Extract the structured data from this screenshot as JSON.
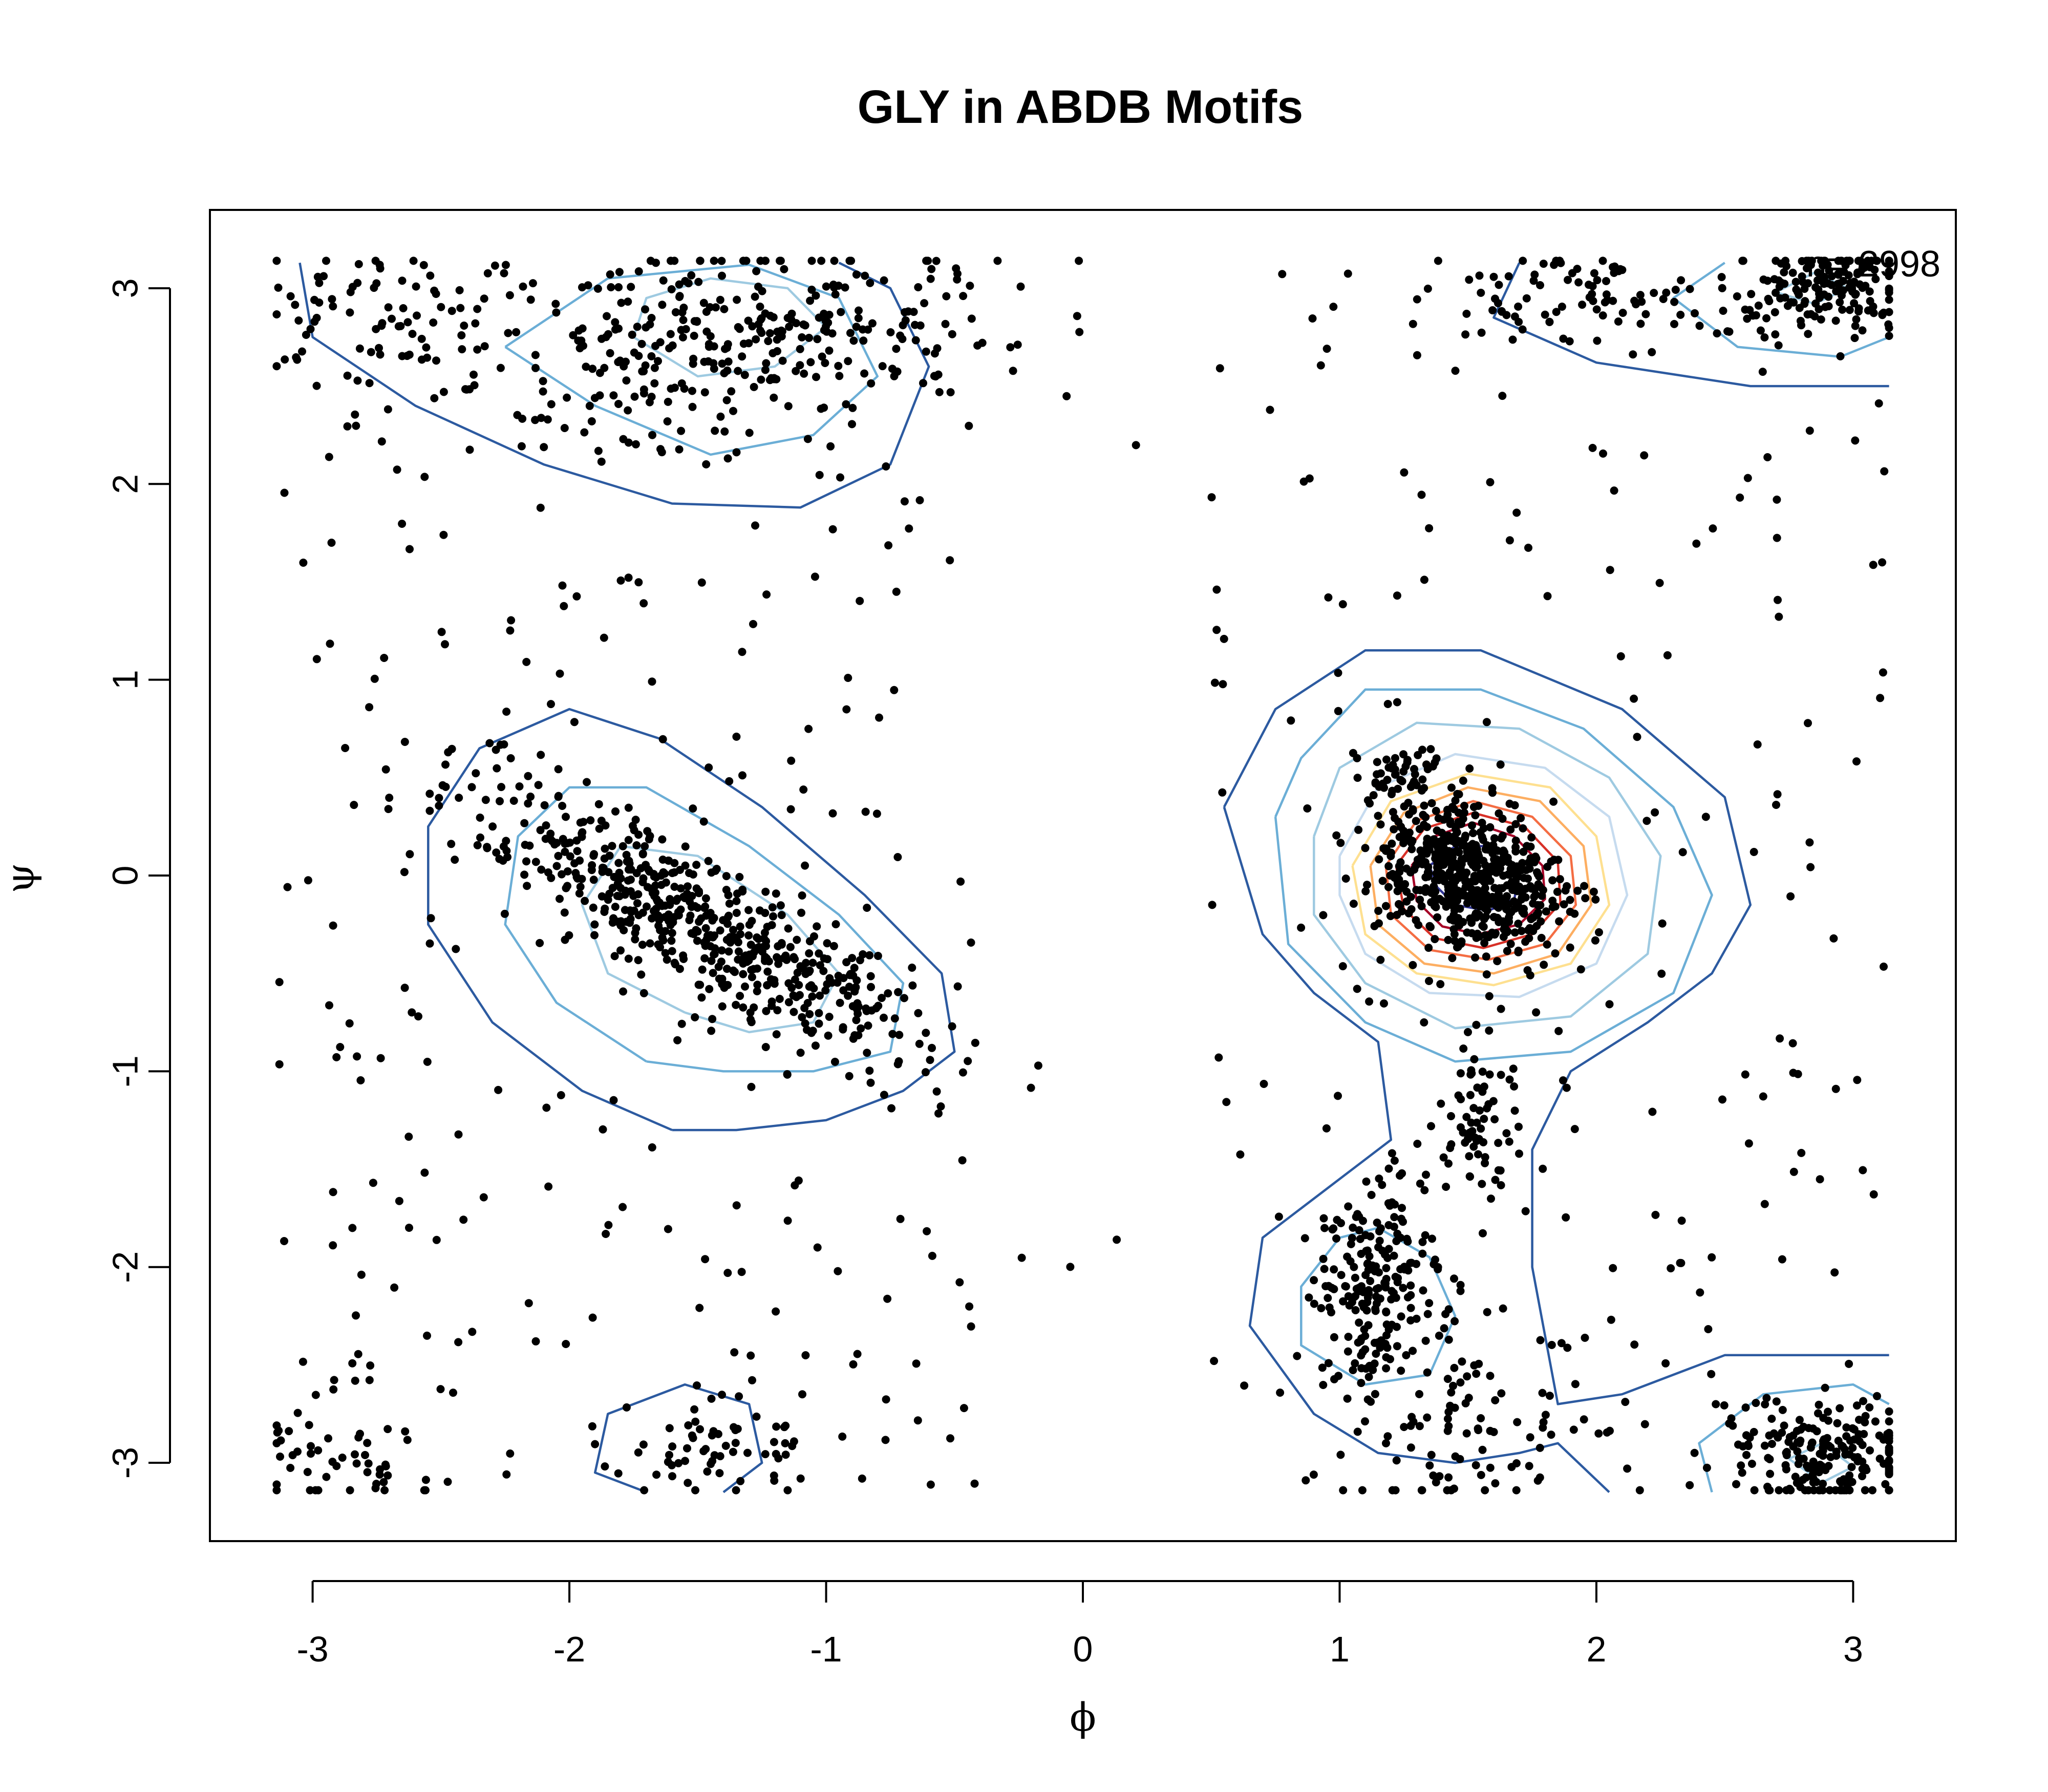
{
  "chart_data": {
    "type": "scatter",
    "title": "GLY  in ABDB Motifs",
    "xlabel": "ϕ",
    "ylabel": "ψ",
    "xlim": [
      -3.4,
      3.4
    ],
    "ylim": [
      -3.4,
      3.4
    ],
    "x_ticks": [
      -3,
      -2,
      -1,
      0,
      1,
      2,
      3
    ],
    "y_ticks": [
      -3,
      -2,
      -1,
      0,
      1,
      2,
      3
    ],
    "x_tick_labels": [
      "-3",
      "-2",
      "-1",
      "0",
      "1",
      "2",
      "3"
    ],
    "y_tick_labels": [
      "-3",
      "-2",
      "-1",
      "0",
      "1",
      "2",
      "3"
    ],
    "annotation": "n= 2998",
    "n_points": 2998,
    "point_color": "#000000",
    "grid": false,
    "clusters": [
      {
        "cx": 1.5,
        "cy": 0.0,
        "sx": 0.18,
        "sy": 0.2,
        "rho": -0.3,
        "count": 600
      },
      {
        "cx": 1.25,
        "cy": 0.55,
        "sx": 0.08,
        "sy": 0.07,
        "rho": 0.0,
        "count": 40
      },
      {
        "cx": -1.5,
        "cy": -0.25,
        "sx": 0.45,
        "sy": 0.35,
        "rho": -0.85,
        "count": 560
      },
      {
        "cx": -1.35,
        "cy": 2.75,
        "sx": 0.5,
        "sy": 0.25,
        "rho": 0.3,
        "count": 320
      },
      {
        "cx": -2.7,
        "cy": 2.85,
        "sx": 0.3,
        "sy": 0.2,
        "rho": 0.0,
        "count": 90
      },
      {
        "cx": 1.15,
        "cy": -2.1,
        "sx": 0.12,
        "sy": 0.22,
        "rho": 0.0,
        "count": 200
      },
      {
        "cx": 2.9,
        "cy": 3.0,
        "sx": 0.2,
        "sy": 0.12,
        "rho": 0.0,
        "count": 160
      },
      {
        "cx": 2.0,
        "cy": 2.95,
        "sx": 0.35,
        "sy": 0.12,
        "rho": 0.0,
        "count": 90
      },
      {
        "cx": 2.9,
        "cy": -2.95,
        "sx": 0.22,
        "sy": 0.15,
        "rho": 0.0,
        "count": 200
      },
      {
        "cx": -1.4,
        "cy": -2.95,
        "sx": 0.2,
        "sy": 0.15,
        "rho": 0.0,
        "count": 60
      },
      {
        "cx": -2.9,
        "cy": -2.95,
        "sx": 0.2,
        "sy": 0.2,
        "rho": 0.0,
        "count": 50
      },
      {
        "cx": 1.55,
        "cy": -1.25,
        "sx": 0.08,
        "sy": 0.25,
        "rho": 0.0,
        "count": 70
      },
      {
        "cx": 1.5,
        "cy": -2.8,
        "sx": 0.3,
        "sy": 0.25,
        "rho": 0.0,
        "count": 100
      }
    ],
    "background_points": 458,
    "contours": [
      {
        "color": "#2c5aa0",
        "points": [
          [
            0.55,
            0.35
          ],
          [
            0.75,
            0.85
          ],
          [
            1.1,
            1.15
          ],
          [
            1.55,
            1.15
          ],
          [
            2.1,
            0.85
          ],
          [
            2.5,
            0.4
          ],
          [
            2.6,
            -0.15
          ],
          [
            2.45,
            -0.5
          ],
          [
            2.2,
            -0.75
          ],
          [
            1.9,
            -1.0
          ],
          [
            1.75,
            -1.4
          ],
          [
            1.75,
            -2.0
          ],
          [
            1.85,
            -2.7
          ],
          [
            2.1,
            -2.65
          ],
          [
            2.5,
            -2.45
          ],
          [
            3.14,
            -2.45
          ]
        ]
      },
      {
        "color": "#2c5aa0",
        "points": [
          [
            2.05,
            -3.15
          ],
          [
            1.85,
            -2.9
          ],
          [
            1.7,
            -2.95
          ],
          [
            1.45,
            -3.0
          ],
          [
            1.15,
            -2.95
          ],
          [
            0.9,
            -2.75
          ],
          [
            0.65,
            -2.3
          ],
          [
            0.7,
            -1.85
          ],
          [
            0.95,
            -1.6
          ],
          [
            1.2,
            -1.35
          ],
          [
            1.15,
            -0.85
          ],
          [
            0.9,
            -0.6
          ],
          [
            0.7,
            -0.3
          ],
          [
            0.55,
            0.35
          ]
        ]
      },
      {
        "color": "#2c5aa0",
        "points": [
          [
            -1.6,
            -1.3
          ],
          [
            -1.95,
            -1.1
          ],
          [
            -2.3,
            -0.75
          ],
          [
            -2.55,
            -0.25
          ],
          [
            -2.55,
            0.25
          ],
          [
            -2.35,
            0.65
          ],
          [
            -2.0,
            0.85
          ],
          [
            -1.65,
            0.7
          ],
          [
            -1.25,
            0.35
          ],
          [
            -0.85,
            -0.1
          ],
          [
            -0.55,
            -0.5
          ],
          [
            -0.5,
            -0.9
          ],
          [
            -0.7,
            -1.1
          ],
          [
            -1.0,
            -1.25
          ],
          [
            -1.35,
            -1.3
          ],
          [
            -1.6,
            -1.3
          ]
        ]
      },
      {
        "color": "#6baed6",
        "points": [
          [
            -1.7,
            -0.95
          ],
          [
            -2.05,
            -0.65
          ],
          [
            -2.25,
            -0.25
          ],
          [
            -2.2,
            0.2
          ],
          [
            -2.0,
            0.45
          ],
          [
            -1.7,
            0.45
          ],
          [
            -1.3,
            0.15
          ],
          [
            -0.95,
            -0.2
          ],
          [
            -0.7,
            -0.55
          ],
          [
            -0.75,
            -0.9
          ],
          [
            -1.05,
            -1.0
          ],
          [
            -1.4,
            -1.0
          ],
          [
            -1.7,
            -0.95
          ]
        ]
      },
      {
        "color": "#9ecae1",
        "points": [
          [
            -1.55,
            -0.7
          ],
          [
            -1.85,
            -0.5
          ],
          [
            -1.95,
            -0.15
          ],
          [
            -1.8,
            0.15
          ],
          [
            -1.5,
            0.1
          ],
          [
            -1.15,
            -0.2
          ],
          [
            -0.95,
            -0.5
          ],
          [
            -1.05,
            -0.75
          ],
          [
            -1.3,
            -0.8
          ],
          [
            -1.55,
            -0.7
          ]
        ]
      },
      {
        "color": "#2c5aa0",
        "points": [
          [
            -3.05,
            3.13
          ],
          [
            -3.0,
            2.75
          ],
          [
            -2.6,
            2.4
          ],
          [
            -2.1,
            2.1
          ],
          [
            -1.6,
            1.9
          ],
          [
            -1.1,
            1.88
          ],
          [
            -0.75,
            2.1
          ],
          [
            -0.6,
            2.6
          ],
          [
            -0.75,
            3.0
          ],
          [
            -0.95,
            3.13
          ]
        ]
      },
      {
        "color": "#6baed6",
        "points": [
          [
            -2.25,
            2.7
          ],
          [
            -1.9,
            2.4
          ],
          [
            -1.45,
            2.15
          ],
          [
            -1.05,
            2.25
          ],
          [
            -0.8,
            2.55
          ],
          [
            -0.95,
            2.95
          ],
          [
            -1.3,
            3.12
          ],
          [
            -1.85,
            3.05
          ],
          [
            -2.25,
            2.7
          ]
        ]
      },
      {
        "color": "#9ecae1",
        "points": [
          [
            -1.75,
            2.75
          ],
          [
            -1.5,
            2.55
          ],
          [
            -1.2,
            2.6
          ],
          [
            -1.0,
            2.8
          ],
          [
            -1.15,
            3.0
          ],
          [
            -1.45,
            3.05
          ],
          [
            -1.7,
            2.95
          ],
          [
            -1.75,
            2.75
          ]
        ]
      },
      {
        "color": "#2c5aa0",
        "points": [
          [
            1.7,
            3.13
          ],
          [
            1.6,
            2.85
          ],
          [
            2.0,
            2.62
          ],
          [
            2.6,
            2.5
          ],
          [
            3.14,
            2.5
          ]
        ]
      },
      {
        "color": "#6baed6",
        "points": [
          [
            2.5,
            3.13
          ],
          [
            2.3,
            2.95
          ],
          [
            2.55,
            2.7
          ],
          [
            2.95,
            2.65
          ],
          [
            3.14,
            2.75
          ]
        ]
      },
      {
        "color": "#9ecae1",
        "points": [
          [
            2.7,
            2.98
          ],
          [
            2.85,
            2.92
          ],
          [
            2.98,
            3.0
          ],
          [
            2.85,
            3.08
          ],
          [
            2.7,
            2.98
          ]
        ]
      },
      {
        "color": "#2c5aa0",
        "points": [
          [
            -1.7,
            -3.15
          ],
          [
            -1.9,
            -3.05
          ],
          [
            -1.85,
            -2.75
          ],
          [
            -1.55,
            -2.6
          ],
          [
            -1.3,
            -2.7
          ],
          [
            -1.25,
            -3.0
          ],
          [
            -1.4,
            -3.15
          ]
        ]
      },
      {
        "color": "#6baed6",
        "points": [
          [
            1.0,
            -1.85
          ],
          [
            0.85,
            -2.1
          ],
          [
            0.85,
            -2.4
          ],
          [
            1.1,
            -2.6
          ],
          [
            1.35,
            -2.55
          ],
          [
            1.45,
            -2.25
          ],
          [
            1.35,
            -1.95
          ],
          [
            1.15,
            -1.8
          ],
          [
            1.0,
            -1.85
          ]
        ]
      },
      {
        "color": "#6baed6",
        "points": [
          [
            2.45,
            -3.15
          ],
          [
            2.4,
            -2.9
          ],
          [
            2.65,
            -2.65
          ],
          [
            3.0,
            -2.6
          ],
          [
            3.14,
            -2.7
          ]
        ]
      },
      {
        "color": "#9ecae1",
        "points": [
          [
            2.75,
            -2.98
          ],
          [
            2.88,
            -2.9
          ],
          [
            3.0,
            -3.02
          ],
          [
            2.88,
            -3.1
          ],
          [
            2.75,
            -2.98
          ]
        ]
      },
      {
        "color": "#6baed6",
        "points": [
          [
            0.75,
            0.3
          ],
          [
            0.85,
            0.6
          ],
          [
            1.1,
            0.95
          ],
          [
            1.55,
            0.95
          ],
          [
            1.95,
            0.75
          ],
          [
            2.3,
            0.35
          ],
          [
            2.45,
            -0.1
          ],
          [
            2.3,
            -0.6
          ],
          [
            1.9,
            -0.9
          ],
          [
            1.45,
            -0.95
          ],
          [
            1.1,
            -0.75
          ],
          [
            0.8,
            -0.35
          ],
          [
            0.75,
            0.3
          ]
        ]
      },
      {
        "color": "#9ecae1",
        "points": [
          [
            0.9,
            0.2
          ],
          [
            1.0,
            0.55
          ],
          [
            1.3,
            0.78
          ],
          [
            1.7,
            0.75
          ],
          [
            2.05,
            0.5
          ],
          [
            2.25,
            0.1
          ],
          [
            2.2,
            -0.4
          ],
          [
            1.9,
            -0.72
          ],
          [
            1.45,
            -0.78
          ],
          [
            1.1,
            -0.55
          ],
          [
            0.9,
            -0.2
          ],
          [
            0.9,
            0.2
          ]
        ]
      },
      {
        "color": "#c6dbef",
        "points": [
          [
            1.0,
            0.1
          ],
          [
            1.15,
            0.45
          ],
          [
            1.45,
            0.62
          ],
          [
            1.8,
            0.55
          ],
          [
            2.05,
            0.3
          ],
          [
            2.12,
            -0.1
          ],
          [
            2.0,
            -0.45
          ],
          [
            1.7,
            -0.62
          ],
          [
            1.35,
            -0.6
          ],
          [
            1.1,
            -0.4
          ],
          [
            1.0,
            -0.1
          ],
          [
            1.0,
            0.1
          ]
        ]
      },
      {
        "color": "#fee090",
        "points": [
          [
            1.05,
            0.05
          ],
          [
            1.2,
            0.38
          ],
          [
            1.5,
            0.52
          ],
          [
            1.82,
            0.45
          ],
          [
            2.0,
            0.2
          ],
          [
            2.05,
            -0.15
          ],
          [
            1.9,
            -0.45
          ],
          [
            1.6,
            -0.56
          ],
          [
            1.3,
            -0.5
          ],
          [
            1.1,
            -0.3
          ],
          [
            1.05,
            0.05
          ]
        ]
      },
      {
        "color": "#fdae61",
        "points": [
          [
            1.12,
            0.05
          ],
          [
            1.25,
            0.32
          ],
          [
            1.5,
            0.45
          ],
          [
            1.78,
            0.38
          ],
          [
            1.95,
            0.15
          ],
          [
            1.98,
            -0.15
          ],
          [
            1.85,
            -0.4
          ],
          [
            1.6,
            -0.5
          ],
          [
            1.33,
            -0.45
          ],
          [
            1.15,
            -0.25
          ],
          [
            1.12,
            0.05
          ]
        ]
      },
      {
        "color": "#f46d43",
        "points": [
          [
            1.18,
            0.05
          ],
          [
            1.3,
            0.28
          ],
          [
            1.52,
            0.38
          ],
          [
            1.75,
            0.3
          ],
          [
            1.9,
            0.1
          ],
          [
            1.92,
            -0.15
          ],
          [
            1.8,
            -0.35
          ],
          [
            1.58,
            -0.43
          ],
          [
            1.35,
            -0.38
          ],
          [
            1.2,
            -0.2
          ],
          [
            1.18,
            0.05
          ]
        ]
      },
      {
        "color": "#d73027",
        "points": [
          [
            1.22,
            0.05
          ],
          [
            1.33,
            0.24
          ],
          [
            1.52,
            0.32
          ],
          [
            1.72,
            0.25
          ],
          [
            1.85,
            0.07
          ],
          [
            1.86,
            -0.14
          ],
          [
            1.75,
            -0.3
          ],
          [
            1.56,
            -0.37
          ],
          [
            1.37,
            -0.32
          ],
          [
            1.25,
            -0.17
          ],
          [
            1.22,
            0.05
          ]
        ]
      },
      {
        "color": "#a50026",
        "points": [
          [
            1.28,
            0.05
          ],
          [
            1.37,
            0.2
          ],
          [
            1.52,
            0.27
          ],
          [
            1.68,
            0.2
          ],
          [
            1.79,
            0.05
          ],
          [
            1.8,
            -0.12
          ],
          [
            1.7,
            -0.25
          ],
          [
            1.54,
            -0.3
          ],
          [
            1.4,
            -0.26
          ],
          [
            1.3,
            -0.13
          ],
          [
            1.28,
            0.05
          ]
        ]
      },
      {
        "color": "#313695",
        "points": [
          [
            1.35,
            0.05
          ],
          [
            1.45,
            0.15
          ],
          [
            1.6,
            0.15
          ],
          [
            1.7,
            0.0
          ],
          [
            1.68,
            -0.12
          ],
          [
            1.58,
            -0.18
          ],
          [
            1.45,
            -0.15
          ],
          [
            1.38,
            -0.06
          ],
          [
            1.35,
            0.05
          ]
        ]
      }
    ]
  }
}
